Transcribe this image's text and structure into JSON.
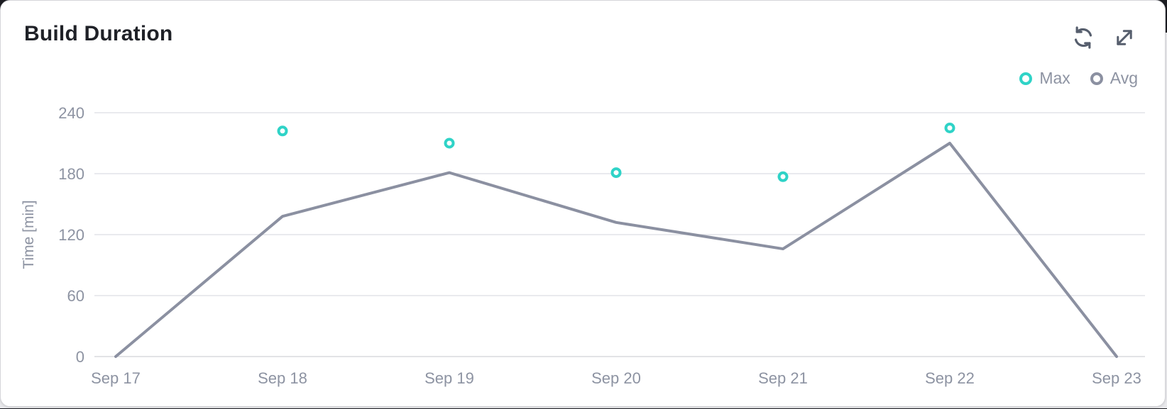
{
  "card": {
    "title": "Build Duration",
    "actions": {
      "refresh_label": "Refresh chart",
      "expand_label": "Expand chart"
    }
  },
  "legend": [
    {
      "label": "Max",
      "color": "#2fd3c7"
    },
    {
      "label": "Avg",
      "color": "#8b90a1"
    }
  ],
  "colors": {
    "accent_teal": "#2fd3c7",
    "line_gray": "#8b90a1",
    "axis_text": "#8d93a2",
    "gridline": "#e2e3e8",
    "icon_gray": "#565e6d"
  },
  "chart_data": {
    "type": "line",
    "title": "Build Duration",
    "categories": [
      "Sep 17",
      "Sep 18",
      "Sep 19",
      "Sep 20",
      "Sep 21",
      "Sep 22",
      "Sep 23"
    ],
    "series": [
      {
        "name": "Max",
        "type": "scatter",
        "color": "#2fd3c7",
        "values": [
          null,
          222,
          210,
          181,
          177,
          225,
          null
        ]
      },
      {
        "name": "Avg",
        "type": "line",
        "color": "#8b90a1",
        "values": [
          0,
          138,
          181,
          132,
          106,
          210,
          0
        ]
      }
    ],
    "xlabel": "",
    "ylabel": "Time [min]",
    "ylim": [
      0,
      240
    ],
    "yticks": [
      0,
      60,
      120,
      180,
      240
    ],
    "grid": true,
    "legend_position": "top-right"
  }
}
